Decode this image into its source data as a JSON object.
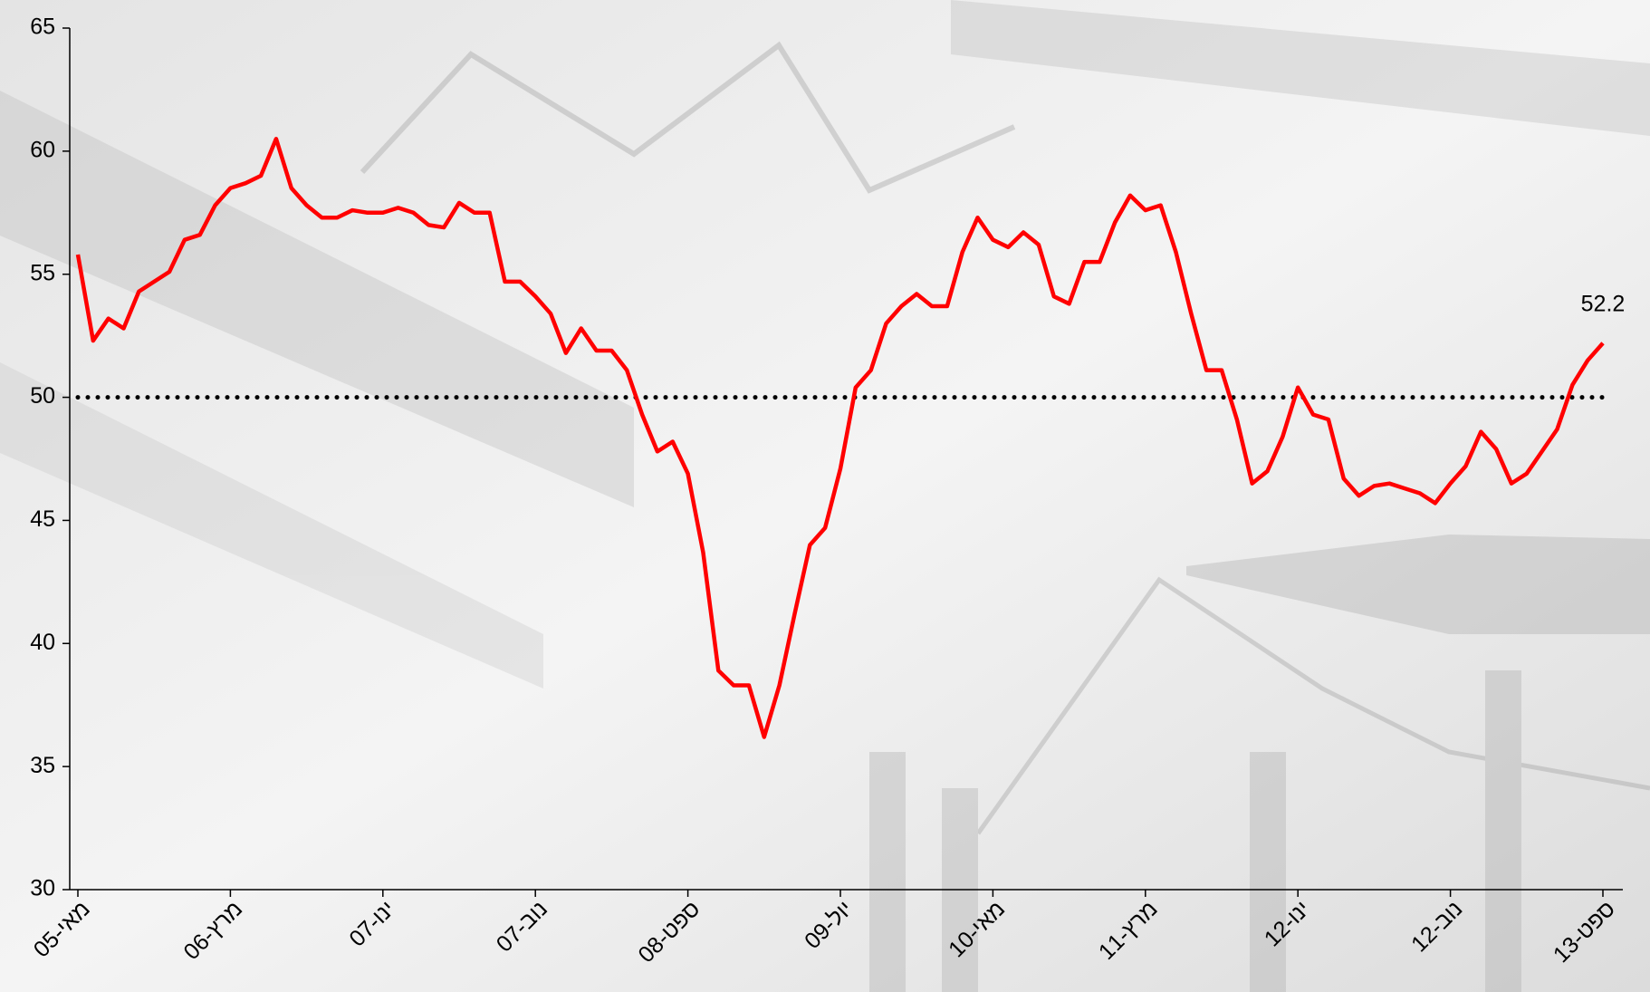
{
  "chart_data": {
    "type": "line",
    "categories": [
      "מאי-05",
      null,
      null,
      null,
      null,
      null,
      null,
      null,
      null,
      null,
      "מרץ-06",
      null,
      null,
      null,
      null,
      null,
      null,
      null,
      null,
      null,
      "ינו-07",
      null,
      null,
      null,
      null,
      null,
      null,
      null,
      null,
      null,
      "נוב-07",
      null,
      null,
      null,
      null,
      null,
      null,
      null,
      null,
      null,
      "ספט-08",
      null,
      null,
      null,
      null,
      null,
      null,
      null,
      null,
      null,
      "יול-09",
      null,
      null,
      null,
      null,
      null,
      null,
      null,
      null,
      null,
      "מאי-10",
      null,
      null,
      null,
      null,
      null,
      null,
      null,
      null,
      null,
      "מרץ-11",
      null,
      null,
      null,
      null,
      null,
      null,
      null,
      null,
      null,
      "ינו-12",
      null,
      null,
      null,
      null,
      null,
      null,
      null,
      null,
      null,
      "נוב-12",
      null,
      null,
      null,
      null,
      null,
      null,
      null,
      null,
      null,
      "ספט-13"
    ],
    "values": [
      55.8,
      52.3,
      53.2,
      52.8,
      54.3,
      54.7,
      55.1,
      56.4,
      56.6,
      57.8,
      58.5,
      58.7,
      59.0,
      60.5,
      58.5,
      57.8,
      57.3,
      57.3,
      57.6,
      57.5,
      57.5,
      57.7,
      57.5,
      57.0,
      56.9,
      57.9,
      57.5,
      57.5,
      54.7,
      54.7,
      54.1,
      53.4,
      51.8,
      52.8,
      51.9,
      51.9,
      51.1,
      49.3,
      47.8,
      48.2,
      46.9,
      43.7,
      38.9,
      38.3,
      38.3,
      36.2,
      38.3,
      41.2,
      44.0,
      44.7,
      47.1,
      50.4,
      51.1,
      53.0,
      53.7,
      54.2,
      53.7,
      53.7,
      55.9,
      57.3,
      56.4,
      56.1,
      56.7,
      56.2,
      54.1,
      53.8,
      55.5,
      55.5,
      57.1,
      58.2,
      57.6,
      57.8,
      55.9,
      53.4,
      51.1,
      51.1,
      49.1,
      46.5,
      47.0,
      48.4,
      50.4,
      49.3,
      49.1,
      46.7,
      46.0,
      46.4,
      46.5,
      46.3,
      46.1,
      45.7,
      46.5,
      47.2,
      48.6,
      47.9,
      46.5,
      46.9,
      47.8,
      48.7,
      50.5,
      51.5,
      52.2
    ],
    "value_labels": [
      null,
      null,
      null,
      null,
      null,
      null,
      null,
      null,
      null,
      null,
      null,
      null,
      null,
      null,
      null,
      null,
      null,
      null,
      null,
      null,
      null,
      null,
      null,
      null,
      null,
      null,
      null,
      null,
      null,
      null,
      null,
      null,
      null,
      null,
      null,
      null,
      null,
      null,
      null,
      null,
      null,
      null,
      null,
      null,
      null,
      null,
      null,
      null,
      null,
      null,
      null,
      null,
      null,
      null,
      null,
      null,
      null,
      null,
      null,
      null,
      null,
      null,
      null,
      null,
      null,
      null,
      null,
      null,
      null,
      null,
      null,
      null,
      null,
      null,
      null,
      null,
      null,
      null,
      null,
      null,
      null,
      null,
      null,
      null,
      null,
      null,
      null,
      null,
      null,
      null,
      null,
      null,
      null,
      null,
      null,
      null,
      null,
      null,
      null,
      null,
      "52.2"
    ],
    "color": "#ff0000",
    "reference_line": 50,
    "reference_color": "#000000",
    "ylim": [
      30,
      65
    ],
    "yticks": [
      30,
      35,
      40,
      45,
      50,
      55,
      60,
      65
    ]
  }
}
